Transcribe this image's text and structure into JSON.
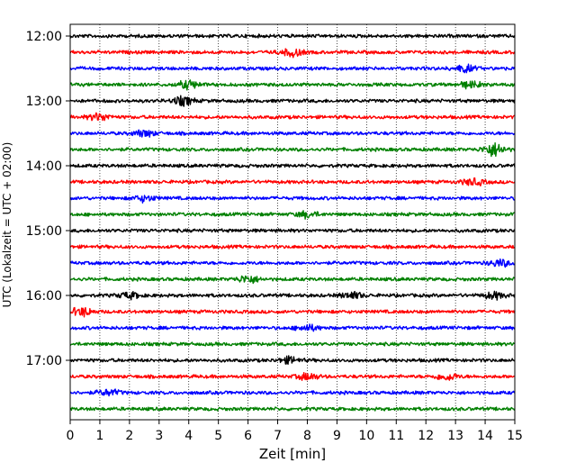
{
  "chart_data": {
    "type": "line",
    "subtype": "helicorder seismogram",
    "xlabel": "Zeit  [min]",
    "ylabel": "UTC (Lokalzeit = UTC + 02:00)",
    "xlim": [
      0,
      15
    ],
    "x_ticks": [
      0,
      1,
      2,
      3,
      4,
      5,
      6,
      7,
      8,
      9,
      10,
      11,
      12,
      13,
      14,
      15
    ],
    "y_tick_labels": [
      "12:00",
      "13:00",
      "14:00",
      "15:00",
      "16:00",
      "17:00"
    ],
    "trace_start_times": [
      "12:00",
      "12:15",
      "12:30",
      "12:45",
      "13:00",
      "13:15",
      "13:30",
      "13:45",
      "14:00",
      "14:15",
      "14:30",
      "14:45",
      "15:00",
      "15:15",
      "15:30",
      "15:45",
      "16:00",
      "16:15",
      "16:30",
      "16:45",
      "17:00",
      "17:15",
      "17:30",
      "17:45"
    ],
    "trace_colors": [
      "#000000",
      "#ff0000",
      "#0000ff",
      "#008000"
    ],
    "vertical_grid": "dotted at each minute",
    "events": [
      {
        "trace": 1,
        "minute": 7.5,
        "amp": 1.6
      },
      {
        "trace": 2,
        "minute": 13.3,
        "amp": 1.5
      },
      {
        "trace": 3,
        "minute": 4.0,
        "amp": 1.6
      },
      {
        "trace": 3,
        "minute": 13.5,
        "amp": 1.4
      },
      {
        "trace": 4,
        "minute": 3.8,
        "amp": 1.8
      },
      {
        "trace": 5,
        "minute": 1.0,
        "amp": 1.6
      },
      {
        "trace": 6,
        "minute": 2.5,
        "amp": 1.3
      },
      {
        "trace": 7,
        "minute": 14.3,
        "amp": 2.8
      },
      {
        "trace": 9,
        "minute": 13.6,
        "amp": 1.4
      },
      {
        "trace": 10,
        "minute": 2.5,
        "amp": 1.3
      },
      {
        "trace": 11,
        "minute": 8.0,
        "amp": 1.3
      },
      {
        "trace": 14,
        "minute": 14.5,
        "amp": 1.4
      },
      {
        "trace": 15,
        "minute": 6.0,
        "amp": 1.6
      },
      {
        "trace": 16,
        "minute": 2.0,
        "amp": 1.3
      },
      {
        "trace": 16,
        "minute": 9.5,
        "amp": 1.4
      },
      {
        "trace": 16,
        "minute": 14.3,
        "amp": 1.4
      },
      {
        "trace": 17,
        "minute": 0.4,
        "amp": 1.8
      },
      {
        "trace": 18,
        "minute": 8.0,
        "amp": 1.3
      },
      {
        "trace": 20,
        "minute": 7.4,
        "amp": 1.3
      },
      {
        "trace": 21,
        "minute": 8.0,
        "amp": 1.4
      },
      {
        "trace": 21,
        "minute": 12.7,
        "amp": 1.6
      },
      {
        "trace": 22,
        "minute": 1.3,
        "amp": 1.3
      }
    ]
  }
}
